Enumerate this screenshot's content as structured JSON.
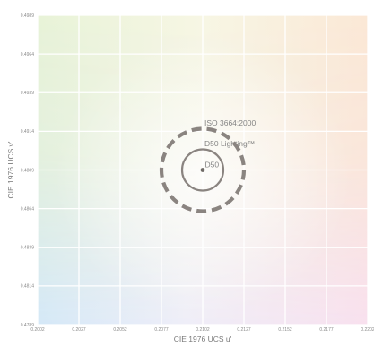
{
  "chart_data": {
    "type": "scatter",
    "title": "",
    "xlabel": "CIE 1976 UCS u'",
    "ylabel": "CIE 1976 UCS v'",
    "xlim": [
      0.2002,
      0.2202
    ],
    "ylim": [
      0.4789,
      0.4989
    ],
    "x_ticks": [
      "0.2002",
      "0.2027",
      "0.2052",
      "0.2077",
      "0.2102",
      "0.2127",
      "0.2152",
      "0.2177",
      "0.2202"
    ],
    "y_ticks": [
      "0.4989",
      "0.4964",
      "0.4939",
      "0.4914",
      "0.4889",
      "0.4864",
      "0.4839",
      "0.4814",
      "0.4789"
    ],
    "grid": true,
    "background": "CIE chromaticity color gradient",
    "points": [
      {
        "label": "D50",
        "u": 0.2102,
        "v": 0.4889
      }
    ],
    "circles": [
      {
        "label": "D50 Lighting™",
        "center_u": 0.2102,
        "center_v": 0.4889,
        "radius": 0.00125,
        "style": "solid",
        "color": "#8a8480"
      },
      {
        "label": "ISO 3664:2000",
        "center_u": 0.2102,
        "center_v": 0.4889,
        "radius": 0.0025,
        "style": "dashed",
        "color": "#8a8480"
      }
    ]
  }
}
